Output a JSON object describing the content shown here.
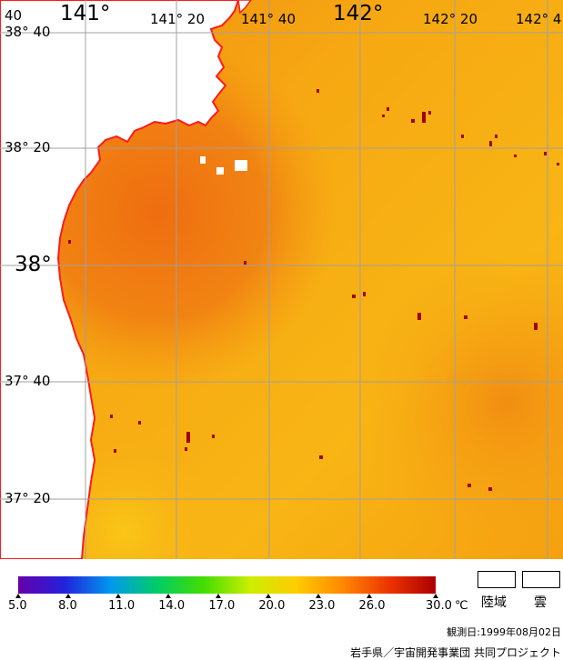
{
  "map": {
    "longitude_labels": [
      {
        "text": "141°",
        "size": "big"
      },
      {
        "text": "141° 20",
        "size": "small"
      },
      {
        "text": "141° 40",
        "size": "small"
      },
      {
        "text": "142°",
        "size": "big"
      },
      {
        "text": "142° 20",
        "size": "small"
      },
      {
        "text": "142° 4",
        "size": "small"
      }
    ],
    "latitude_labels": [
      {
        "text": "38° 40",
        "size": "small"
      },
      {
        "text": "38° 20",
        "size": "small"
      },
      {
        "text": "38°",
        "size": "big"
      },
      {
        "text": "37° 40",
        "size": "small"
      },
      {
        "text": "37° 20",
        "size": "small"
      }
    ],
    "corner_label": "40",
    "colors": {
      "land": "#ffffff",
      "coast": "#ff1a1a",
      "grid": "#a0a0a0",
      "sea_warm": "#f7a810",
      "sea_hot": "#ee6a10",
      "hotspot": "#a00010"
    }
  },
  "colorbar": {
    "min": 5.0,
    "max": 30.0,
    "ticks": [
      "5.0",
      "8.0",
      "11.0",
      "14.0",
      "17.0",
      "20.0",
      "23.0",
      "26.0",
      "30.0"
    ],
    "unit": "℃",
    "stops": [
      "#6600aa",
      "#2222dd",
      "#0099ee",
      "#00cc66",
      "#44dd00",
      "#ccee00",
      "#ffcc00",
      "#ff8800",
      "#ee3300",
      "#aa0000"
    ]
  },
  "legend": {
    "land_label": "陸域",
    "cloud_label": "雲"
  },
  "footer": {
    "observation_date": "観測日:1999年08月02日",
    "credit": "岩手県／宇宙開発事業団 共同プロジェクト"
  }
}
